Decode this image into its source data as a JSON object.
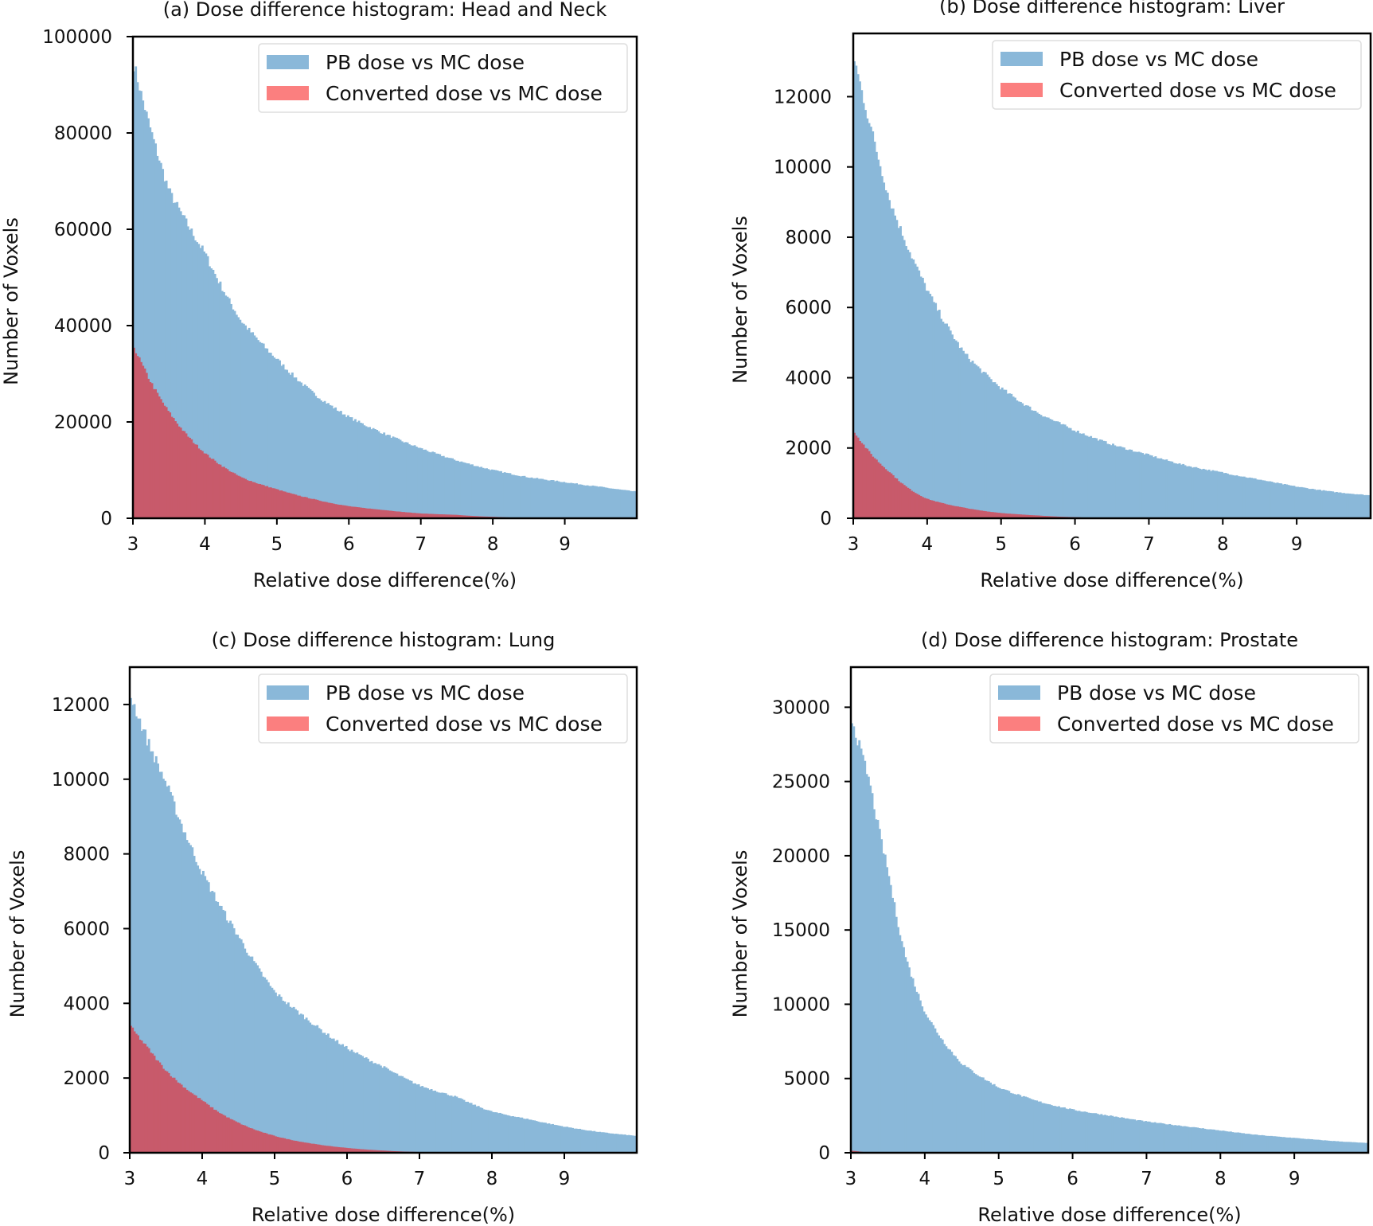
{
  "colors": {
    "pb": "#8ab8d9",
    "converted_overlap": "#c85a6b",
    "converted_legend": "#fb7f7f"
  },
  "chart_data": [
    {
      "type": "bar",
      "title": "(a) Dose difference histogram: Head and Neck",
      "xlabel": "Relative dose difference(%)",
      "ylabel": "Number of Voxels",
      "xlim": [
        3,
        10
      ],
      "ylim": [
        0,
        100000
      ],
      "xticks": [
        "3",
        "4",
        "5",
        "6",
        "7",
        "8",
        "9"
      ],
      "yticks": [
        "0",
        "20000",
        "40000",
        "60000",
        "80000",
        "100000"
      ],
      "legend": "top-right",
      "grid": false,
      "x": [
        3,
        3.5,
        4,
        4.5,
        5,
        5.5,
        6,
        6.5,
        7,
        7.5,
        8,
        8.5,
        9,
        9.5,
        10
      ],
      "series": [
        {
          "name": "PB dose vs MC dose",
          "values": [
            95000,
            68000,
            55000,
            41000,
            33000,
            26000,
            21000,
            17500,
            14500,
            12000,
            10000,
            8500,
            7500,
            6500,
            5500
          ]
        },
        {
          "name": "Converted dose vs MC dose",
          "values": [
            36000,
            22000,
            13500,
            8500,
            6000,
            4000,
            2500,
            1700,
            1000,
            700,
            300,
            0,
            0,
            0,
            0
          ]
        }
      ]
    },
    {
      "type": "bar",
      "title": "(b) Dose difference histogram: Liver",
      "xlabel": "Relative dose difference(%)",
      "ylabel": "Number of Voxels",
      "xlim": [
        3,
        10
      ],
      "ylim": [
        0,
        13800
      ],
      "xticks": [
        "3",
        "4",
        "5",
        "6",
        "7",
        "8",
        "9"
      ],
      "yticks": [
        "0",
        "2000",
        "4000",
        "6000",
        "8000",
        "10000",
        "12000"
      ],
      "legend": "top-right",
      "grid": false,
      "x": [
        3,
        3.25,
        3.5,
        4,
        4.5,
        5,
        5.5,
        6,
        6.5,
        7,
        7.5,
        8,
        8.5,
        9,
        9.5,
        10
      ],
      "series": [
        {
          "name": "PB dose vs MC dose",
          "values": [
            13200,
            11000,
            9000,
            6500,
            4700,
            3700,
            3000,
            2500,
            2100,
            1800,
            1500,
            1300,
            1100,
            900,
            750,
            650
          ]
        },
        {
          "name": "Converted dose vs MC dose",
          "values": [
            2500,
            1800,
            1300,
            550,
            300,
            150,
            80,
            30,
            0,
            0,
            0,
            0,
            0,
            0,
            0,
            0
          ]
        }
      ]
    },
    {
      "type": "bar",
      "title": "(c) Dose difference histogram: Lung",
      "xlabel": "Relative dose difference(%)",
      "ylabel": "Number of Voxels",
      "xlim": [
        3,
        10
      ],
      "ylim": [
        0,
        13000
      ],
      "xticks": [
        "3",
        "4",
        "5",
        "6",
        "7",
        "8",
        "9"
      ],
      "yticks": [
        "0",
        "2000",
        "4000",
        "6000",
        "8000",
        "10000",
        "12000"
      ],
      "legend": "top-right",
      "grid": false,
      "x": [
        3,
        3.25,
        3.5,
        4,
        4.5,
        5,
        5.5,
        6,
        6.5,
        7,
        7.5,
        8,
        8.5,
        9,
        9.5,
        10
      ],
      "series": [
        {
          "name": "PB dose vs MC dose",
          "values": [
            12300,
            11000,
            9900,
            7500,
            5800,
            4300,
            3500,
            2800,
            2300,
            1800,
            1500,
            1100,
            900,
            700,
            550,
            450
          ]
        },
        {
          "name": "Converted dose vs MC dose",
          "values": [
            3400,
            2800,
            2200,
            1400,
            800,
            450,
            250,
            130,
            60,
            20,
            0,
            0,
            0,
            0,
            0,
            0
          ]
        }
      ]
    },
    {
      "type": "bar",
      "title": "(d) Dose difference histogram: Prostate",
      "xlabel": "Relative dose difference(%)",
      "ylabel": "Number of Voxels",
      "xlim": [
        3,
        10
      ],
      "ylim": [
        0,
        32700
      ],
      "xticks": [
        "3",
        "4",
        "5",
        "6",
        "7",
        "8",
        "9"
      ],
      "yticks": [
        "0",
        "5000",
        "10000",
        "15000",
        "20000",
        "25000",
        "30000"
      ],
      "legend": "top-right",
      "grid": false,
      "x": [
        3,
        3.25,
        3.5,
        3.75,
        4,
        4.25,
        4.5,
        5,
        5.5,
        6,
        6.5,
        7,
        7.5,
        8,
        8.5,
        9,
        9.5,
        10
      ],
      "series": [
        {
          "name": "PB dose vs MC dose",
          "values": [
            29500,
            25000,
            19000,
            13000,
            9500,
            7500,
            6000,
            4400,
            3500,
            2900,
            2500,
            2100,
            1800,
            1500,
            1200,
            1000,
            800,
            650
          ]
        },
        {
          "name": "Converted dose vs MC dose",
          "values": [
            150,
            0,
            0,
            0,
            0,
            0,
            0,
            0,
            0,
            0,
            0,
            0,
            0,
            0,
            0,
            0,
            0,
            0
          ]
        }
      ]
    }
  ]
}
